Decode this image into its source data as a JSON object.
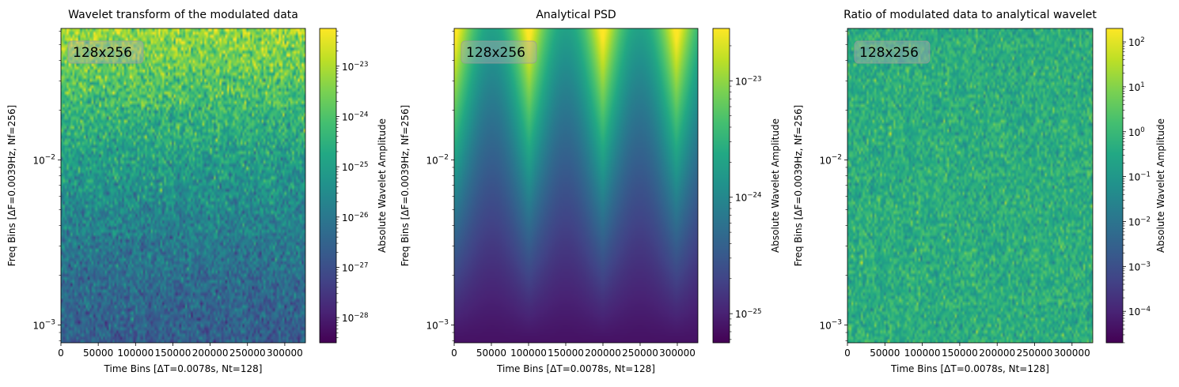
{
  "chart_data": [
    {
      "type": "heatmap",
      "title": "Wavelet transform of the modulated data",
      "xlabel": "Time Bins [ΔT=0.0078s, Nt=128]",
      "ylabel": "Freq Bins [ΔF=0.0039Hz, Nf=256]",
      "annotation": "128x256",
      "xlim": [
        0,
        327680
      ],
      "ylim": [
        0.00078,
        0.0625
      ],
      "yscale": "log",
      "x_ticks": [
        0,
        50000,
        100000,
        150000,
        200000,
        250000,
        300000
      ],
      "y_ticks": [
        0.001,
        0.01
      ],
      "y_tick_labels": [
        [
          "10",
          "−3"
        ],
        [
          "10",
          "−2"
        ]
      ],
      "colormap": "viridis",
      "colorbar": {
        "label": "Absolute Wavelet Amplitude",
        "scale": "log",
        "range_exp": [
          -28.5,
          -22.25
        ],
        "tick_exps": [
          -28,
          -27,
          -26,
          -25,
          -24,
          -23
        ]
      },
      "pattern": "noisy amplitude increasing with frequency; bright yellow-green at high frequencies, teal-blue at low frequencies"
    },
    {
      "type": "heatmap",
      "title": "Analytical PSD",
      "xlabel": "Time Bins [ΔT=0.0078s, Nt=128]",
      "ylabel": "Freq Bins [ΔF=0.0039Hz, Nf=256]",
      "annotation": "128x256",
      "xlim": [
        0,
        327680
      ],
      "ylim": [
        0.00078,
        0.0625
      ],
      "yscale": "log",
      "x_ticks": [
        0,
        50000,
        100000,
        150000,
        200000,
        250000,
        300000
      ],
      "y_ticks": [
        0.001,
        0.01
      ],
      "y_tick_labels": [
        [
          "10",
          "−3"
        ],
        [
          "10",
          "−2"
        ]
      ],
      "colormap": "viridis",
      "colorbar": {
        "label": "Absolute Wavelet Amplitude",
        "scale": "log",
        "range_exp": [
          -25.25,
          -22.55
        ],
        "tick_exps": [
          -25,
          -24,
          -23
        ]
      },
      "pattern": "smooth field increasing with frequency, modulated periodically in time with minima near 50000, 150000, 250000"
    },
    {
      "type": "heatmap",
      "title": "Ratio of modulated data to analytical wavelet",
      "xlabel": "Time Bins [ΔT=0.0078s, Nt=128]",
      "ylabel": "Freq Bins [ΔF=0.0039Hz, Nf=256]",
      "annotation": "128x256",
      "xlim": [
        0,
        327680
      ],
      "ylim": [
        0.00078,
        0.0625
      ],
      "yscale": "log",
      "x_ticks": [
        0,
        50000,
        100000,
        150000,
        200000,
        250000,
        300000
      ],
      "y_ticks": [
        0.001,
        0.01
      ],
      "y_tick_labels": [
        [
          "10",
          "−3"
        ],
        [
          "10",
          "−2"
        ]
      ],
      "colormap": "viridis",
      "colorbar": {
        "label": "Absolute Wavelet Amplitude",
        "scale": "log",
        "range_exp": [
          -4.7,
          2.3
        ],
        "tick_exps": [
          -4,
          -3,
          -2,
          -1,
          0,
          1,
          2
        ]
      },
      "pattern": "uniform noise around ratio 1 (teal-green) with no structure"
    }
  ]
}
